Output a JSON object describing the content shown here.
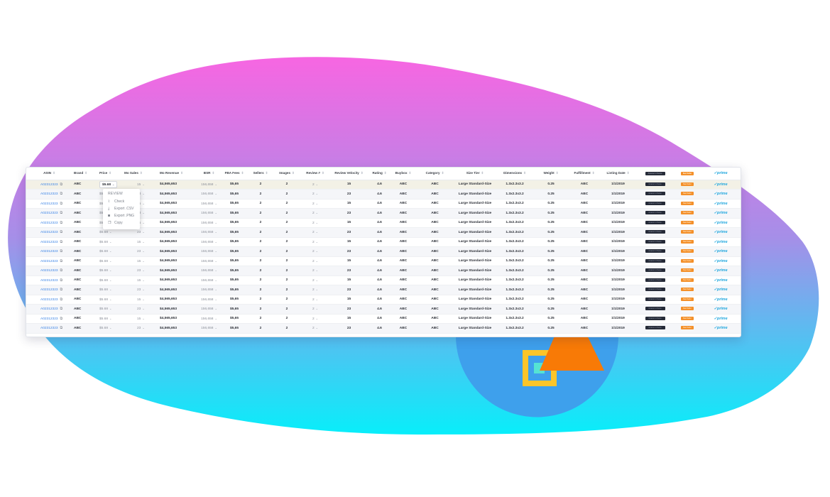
{
  "colors": {
    "blob_top": "#f766e2",
    "blob_bottom": "#08eefa",
    "circle": "#3ea0ec",
    "triangle": "#f87a06",
    "square_outline": "#fbc52a",
    "square_fill": "#55e3d3",
    "link": "#3a83e6",
    "prime": "#20a7de"
  },
  "table": {
    "columns": [
      "ASIN",
      "Brand",
      "Price",
      "Mo Sales",
      "Mo Revenue",
      "BSR",
      "FBA Fees",
      "Sellers",
      "Images",
      "Review #",
      "Review Velocity",
      "Rating",
      "Buybox",
      "Category",
      "Size Tier",
      "Dimensions",
      "Weight",
      "Fulfillment",
      "Listing Date"
    ],
    "badge_dark_text": "Amazon's Choice",
    "badge_orange_text": "Best Seller",
    "prime_label": "✓prime",
    "rows": [
      {
        "asin": "A02312323",
        "brand": "ABC",
        "price": "$5.68",
        "sales": "15",
        "revenue": "$4,565,653",
        "bsr": "156,658",
        "fees": "$5,65",
        "sellers": "2",
        "images": "2",
        "reviews": "2",
        "velocity": "15",
        "rating": "4.6",
        "buybox": "ABC",
        "category": "ABC",
        "size_tier": "Large Standard-Size",
        "dimensions": "1.3x2.3x3.2",
        "weight": "0.25",
        "fulfillment": "ABC",
        "listing_date": "1/1/2019"
      },
      {
        "asin": "A02312323",
        "brand": "ABC",
        "price": "$5.68",
        "sales": "23",
        "revenue": "$4,565,653",
        "bsr": "156,658",
        "fees": "$5,65",
        "sellers": "2",
        "images": "2",
        "reviews": "2",
        "velocity": "23",
        "rating": "4.6",
        "buybox": "ABC",
        "category": "ABC",
        "size_tier": "Large Standard-Size",
        "dimensions": "1.3x2.3x3.2",
        "weight": "0.25",
        "fulfillment": "ABC",
        "listing_date": "1/1/2019"
      },
      {
        "asin": "A02312323",
        "brand": "ABC",
        "price": "$5.68",
        "sales": "15",
        "revenue": "$4,565,653",
        "bsr": "156,658",
        "fees": "$5,65",
        "sellers": "2",
        "images": "2",
        "reviews": "2",
        "velocity": "15",
        "rating": "4.6",
        "buybox": "ABC",
        "category": "ABC",
        "size_tier": "Large Standard-Size",
        "dimensions": "1.3x2.3x3.2",
        "weight": "0.25",
        "fulfillment": "ABC",
        "listing_date": "1/1/2019"
      },
      {
        "asin": "A02312323",
        "brand": "ABC",
        "price": "$5.68",
        "sales": "23",
        "revenue": "$4,565,653",
        "bsr": "156,658",
        "fees": "$5,65",
        "sellers": "2",
        "images": "2",
        "reviews": "2",
        "velocity": "23",
        "rating": "4.6",
        "buybox": "ABC",
        "category": "ABC",
        "size_tier": "Large Standard-Size",
        "dimensions": "1.3x2.3x3.2",
        "weight": "0.25",
        "fulfillment": "ABC",
        "listing_date": "1/1/2019"
      },
      {
        "asin": "A02312323",
        "brand": "ABC",
        "price": "$5.68",
        "sales": "15",
        "revenue": "$4,565,653",
        "bsr": "156,658",
        "fees": "$5,65",
        "sellers": "2",
        "images": "2",
        "reviews": "2",
        "velocity": "15",
        "rating": "4.6",
        "buybox": "ABC",
        "category": "ABC",
        "size_tier": "Large Standard-Size",
        "dimensions": "1.3x2.3x3.2",
        "weight": "0.25",
        "fulfillment": "ABC",
        "listing_date": "1/1/2019"
      },
      {
        "asin": "A02312323",
        "brand": "ABC",
        "price": "$5.68",
        "sales": "23",
        "revenue": "$4,565,653",
        "bsr": "156,658",
        "fees": "$5,65",
        "sellers": "2",
        "images": "2",
        "reviews": "2",
        "velocity": "23",
        "rating": "4.6",
        "buybox": "ABC",
        "category": "ABC",
        "size_tier": "Large Standard-Size",
        "dimensions": "1.3x2.3x3.2",
        "weight": "0.25",
        "fulfillment": "ABC",
        "listing_date": "1/1/2019"
      },
      {
        "asin": "A02312323",
        "brand": "ABC",
        "price": "$5.68",
        "sales": "15",
        "revenue": "$4,565,653",
        "bsr": "156,658",
        "fees": "$5,65",
        "sellers": "2",
        "images": "2",
        "reviews": "2",
        "velocity": "15",
        "rating": "4.6",
        "buybox": "ABC",
        "category": "ABC",
        "size_tier": "Large Standard-Size",
        "dimensions": "1.3x2.3x3.2",
        "weight": "0.25",
        "fulfillment": "ABC",
        "listing_date": "1/1/2019"
      },
      {
        "asin": "A02312323",
        "brand": "ABC",
        "price": "$5.68",
        "sales": "23",
        "revenue": "$4,565,653",
        "bsr": "156,658",
        "fees": "$5,65",
        "sellers": "2",
        "images": "2",
        "reviews": "2",
        "velocity": "23",
        "rating": "4.6",
        "buybox": "ABC",
        "category": "ABC",
        "size_tier": "Large Standard-Size",
        "dimensions": "1.3x2.3x3.2",
        "weight": "0.25",
        "fulfillment": "ABC",
        "listing_date": "1/1/2019"
      },
      {
        "asin": "A02312323",
        "brand": "ABC",
        "price": "$5.68",
        "sales": "15",
        "revenue": "$4,565,653",
        "bsr": "156,658",
        "fees": "$5,65",
        "sellers": "2",
        "images": "2",
        "reviews": "2",
        "velocity": "15",
        "rating": "4.6",
        "buybox": "ABC",
        "category": "ABC",
        "size_tier": "Large Standard-Size",
        "dimensions": "1.3x2.3x3.2",
        "weight": "0.25",
        "fulfillment": "ABC",
        "listing_date": "1/1/2019"
      },
      {
        "asin": "A02312323",
        "brand": "ABC",
        "price": "$5.68",
        "sales": "23",
        "revenue": "$4,565,653",
        "bsr": "156,658",
        "fees": "$5,65",
        "sellers": "2",
        "images": "2",
        "reviews": "2",
        "velocity": "23",
        "rating": "4.6",
        "buybox": "ABC",
        "category": "ABC",
        "size_tier": "Large Standard-Size",
        "dimensions": "1.3x2.3x3.2",
        "weight": "0.25",
        "fulfillment": "ABC",
        "listing_date": "1/1/2019"
      },
      {
        "asin": "A02312323",
        "brand": "ABC",
        "price": "$5.68",
        "sales": "15",
        "revenue": "$4,565,653",
        "bsr": "156,658",
        "fees": "$5,65",
        "sellers": "2",
        "images": "2",
        "reviews": "2",
        "velocity": "15",
        "rating": "4.6",
        "buybox": "ABC",
        "category": "ABC",
        "size_tier": "Large Standard-Size",
        "dimensions": "1.3x2.3x3.2",
        "weight": "0.25",
        "fulfillment": "ABC",
        "listing_date": "1/1/2019"
      },
      {
        "asin": "A02312323",
        "brand": "ABC",
        "price": "$5.68",
        "sales": "23",
        "revenue": "$4,565,653",
        "bsr": "156,658",
        "fees": "$5,65",
        "sellers": "2",
        "images": "2",
        "reviews": "2",
        "velocity": "23",
        "rating": "4.6",
        "buybox": "ABC",
        "category": "ABC",
        "size_tier": "Large Standard-Size",
        "dimensions": "1.3x2.3x3.2",
        "weight": "0.25",
        "fulfillment": "ABC",
        "listing_date": "1/1/2019"
      },
      {
        "asin": "A02312323",
        "brand": "ABC",
        "price": "$5.68",
        "sales": "15",
        "revenue": "$4,565,653",
        "bsr": "156,658",
        "fees": "$5,65",
        "sellers": "2",
        "images": "2",
        "reviews": "2",
        "velocity": "15",
        "rating": "4.6",
        "buybox": "ABC",
        "category": "ABC",
        "size_tier": "Large Standard-Size",
        "dimensions": "1.3x2.3x3.2",
        "weight": "0.25",
        "fulfillment": "ABC",
        "listing_date": "1/1/2019"
      },
      {
        "asin": "A02312323",
        "brand": "ABC",
        "price": "$5.68",
        "sales": "23",
        "revenue": "$4,565,653",
        "bsr": "156,658",
        "fees": "$5,65",
        "sellers": "2",
        "images": "2",
        "reviews": "2",
        "velocity": "23",
        "rating": "4.6",
        "buybox": "ABC",
        "category": "ABC",
        "size_tier": "Large Standard-Size",
        "dimensions": "1.3x2.3x3.2",
        "weight": "0.25",
        "fulfillment": "ABC",
        "listing_date": "1/1/2019"
      },
      {
        "asin": "A02312323",
        "brand": "ABC",
        "price": "$5.68",
        "sales": "15",
        "revenue": "$4,565,653",
        "bsr": "156,658",
        "fees": "$5,65",
        "sellers": "2",
        "images": "2",
        "reviews": "2",
        "velocity": "15",
        "rating": "4.6",
        "buybox": "ABC",
        "category": "ABC",
        "size_tier": "Large Standard-Size",
        "dimensions": "1.3x2.3x3.2",
        "weight": "0.25",
        "fulfillment": "ABC",
        "listing_date": "1/1/2019"
      },
      {
        "asin": "A02312323",
        "brand": "ABC",
        "price": "$5.68",
        "sales": "23",
        "revenue": "$4,565,653",
        "bsr": "156,658",
        "fees": "$5,65",
        "sellers": "2",
        "images": "2",
        "reviews": "2",
        "velocity": "23",
        "rating": "4.6",
        "buybox": "ABC",
        "category": "ABC",
        "size_tier": "Large Standard-Size",
        "dimensions": "1.3x2.3x3.2",
        "weight": "0.25",
        "fulfillment": "ABC",
        "listing_date": "1/1/2019"
      }
    ]
  },
  "context_menu": {
    "title": "REVIEW",
    "items": [
      {
        "label": "Check",
        "icon": "chart-icon"
      },
      {
        "label": "Export .CSV",
        "icon": "download-icon"
      },
      {
        "label": "Export .PNG",
        "icon": "camera-icon"
      },
      {
        "label": "Copy",
        "icon": "copy-icon"
      }
    ]
  }
}
